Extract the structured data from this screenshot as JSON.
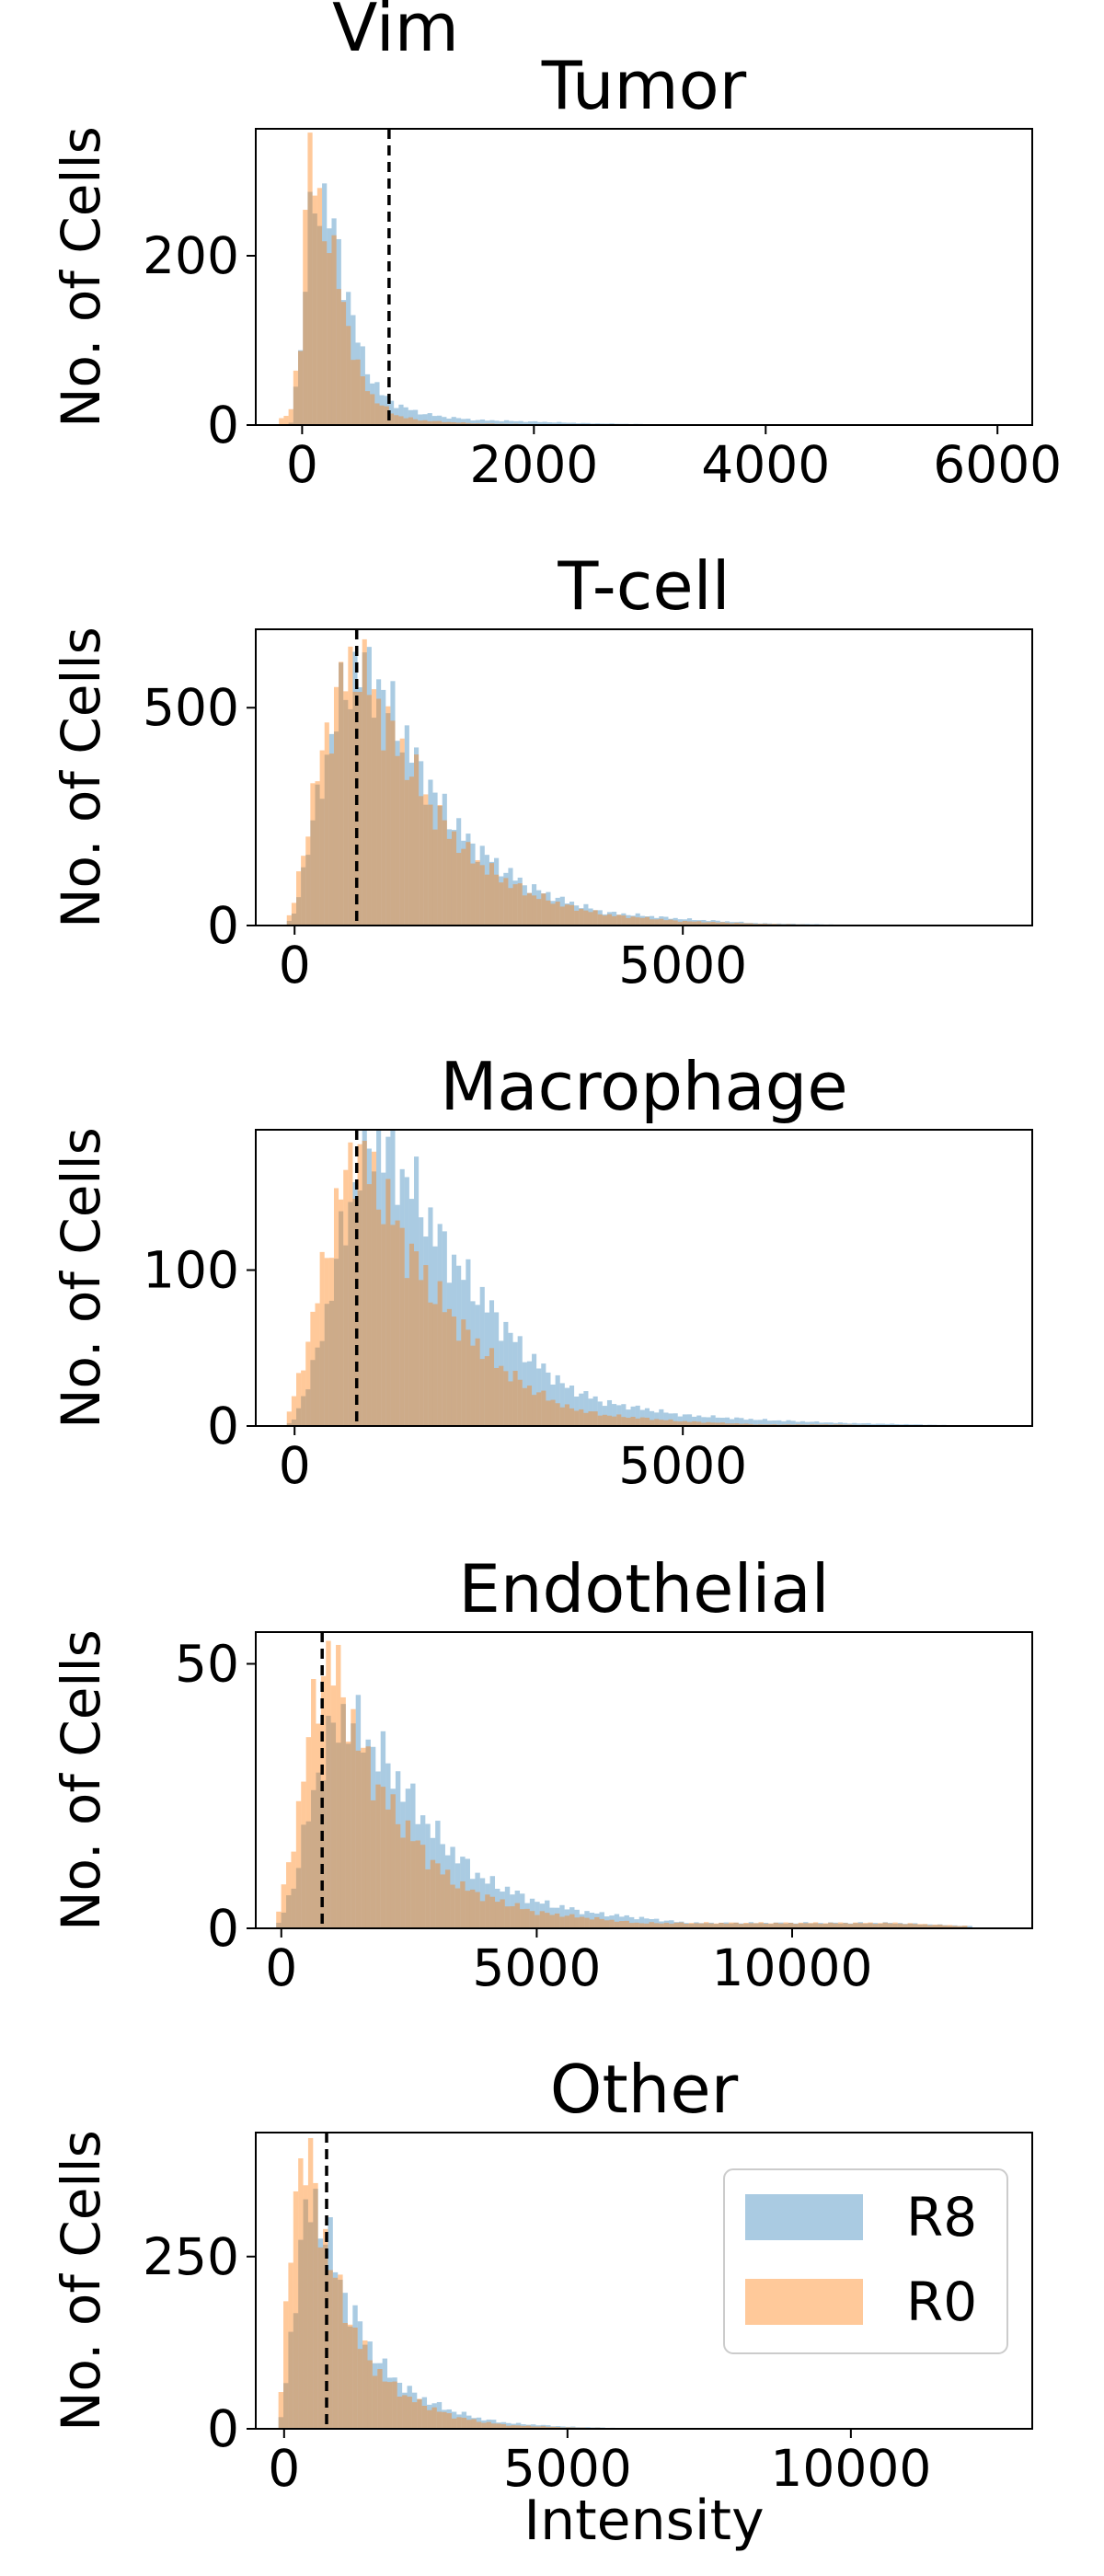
{
  "figure": {
    "suptitle": "Vim",
    "xlabel": "Intensity"
  },
  "colors": {
    "R8": "#1f77b4",
    "R0": "#ff7f0e",
    "threshold": "#000000"
  },
  "legend": {
    "placement": "lower-right-of-last-panel",
    "entries": [
      "R8",
      "R0"
    ]
  },
  "chart_data": [
    {
      "type": "histogram",
      "title": "Tumor",
      "ylabel": "No. of Cells",
      "xlim": [
        -400,
        6300
      ],
      "ylim": [
        0,
        350
      ],
      "xticks": [
        0,
        2000,
        4000,
        6000
      ],
      "yticks": [
        0,
        200
      ],
      "threshold": 750,
      "series": [
        {
          "name": "R8",
          "x": [
            -200,
            -100,
            0,
            50,
            100,
            150,
            200,
            250,
            300,
            350,
            400,
            450,
            500,
            600,
            700,
            800,
            1000,
            1200,
            1500,
            2000,
            2500,
            3000,
            6000
          ],
          "values": [
            0,
            0,
            100,
            220,
            270,
            265,
            260,
            240,
            215,
            185,
            150,
            120,
            90,
            55,
            35,
            25,
            15,
            10,
            6,
            4,
            2,
            1,
            0
          ]
        },
        {
          "name": "R0",
          "x": [
            -200,
            -100,
            0,
            50,
            100,
            150,
            200,
            250,
            300,
            350,
            400,
            450,
            500,
            600,
            700,
            800,
            1000,
            1200,
            1500,
            2000,
            2500,
            3000,
            6000
          ],
          "values": [
            5,
            15,
            120,
            330,
            300,
            260,
            240,
            205,
            180,
            150,
            115,
            85,
            60,
            35,
            22,
            12,
            6,
            4,
            2,
            1,
            1,
            0,
            0
          ]
        }
      ]
    },
    {
      "type": "histogram",
      "title": "T-cell",
      "ylabel": "No. of Cells",
      "xlim": [
        -500,
        9500
      ],
      "ylim": [
        0,
        680
      ],
      "xticks": [
        0,
        5000
      ],
      "yticks": [
        0,
        500
      ],
      "threshold": 800,
      "series": [
        {
          "name": "R8",
          "x": [
            -100,
            0,
            200,
            400,
            600,
            800,
            1000,
            1200,
            1500,
            1800,
            2200,
            2600,
            3000,
            3500,
            4000,
            5000,
            6000,
            7000,
            9000
          ],
          "values": [
            0,
            30,
            200,
            380,
            520,
            590,
            580,
            510,
            400,
            300,
            200,
            140,
            90,
            55,
            30,
            15,
            5,
            2,
            0
          ]
        },
        {
          "name": "R0",
          "x": [
            -100,
            0,
            200,
            400,
            600,
            800,
            1000,
            1200,
            1500,
            1800,
            2200,
            2600,
            3000,
            3500,
            4000,
            5000,
            6000,
            7000,
            9000
          ],
          "values": [
            5,
            60,
            260,
            430,
            560,
            600,
            540,
            460,
            360,
            260,
            170,
            115,
            75,
            45,
            25,
            10,
            4,
            1,
            0
          ]
        }
      ]
    },
    {
      "type": "histogram",
      "title": "Macrophage",
      "ylabel": "No. of Cells",
      "xlim": [
        -500,
        9500
      ],
      "ylim": [
        0,
        190
      ],
      "xticks": [
        0,
        5000
      ],
      "yticks": [
        0,
        100
      ],
      "threshold": 800,
      "series": [
        {
          "name": "R8",
          "x": [
            -100,
            0,
            200,
            400,
            600,
            800,
            1000,
            1200,
            1500,
            1800,
            2200,
            2600,
            3000,
            3500,
            4000,
            5000,
            6000,
            7000,
            8000,
            9000
          ],
          "values": [
            0,
            5,
            30,
            70,
            120,
            160,
            185,
            175,
            155,
            125,
            95,
            70,
            45,
            25,
            15,
            7,
            4,
            2,
            1,
            0
          ]
        },
        {
          "name": "R0",
          "x": [
            -100,
            0,
            200,
            400,
            600,
            800,
            1000,
            1200,
            1500,
            1800,
            2200,
            2600,
            3000,
            3500,
            4000,
            5000,
            6000,
            7000,
            8000,
            9000
          ],
          "values": [
            5,
            20,
            60,
            110,
            150,
            180,
            160,
            140,
            110,
            85,
            60,
            40,
            25,
            12,
            7,
            3,
            1,
            1,
            0,
            0
          ]
        }
      ]
    },
    {
      "type": "histogram",
      "title": "Endothelial",
      "ylabel": "No. of Cells",
      "xlim": [
        -500,
        14700
      ],
      "ylim": [
        0,
        56
      ],
      "xticks": [
        0,
        5000,
        10000
      ],
      "yticks": [
        0,
        50
      ],
      "threshold": 800,
      "series": [
        {
          "name": "R8",
          "x": [
            -100,
            0,
            300,
            600,
            900,
            1200,
            1500,
            2000,
            2500,
            3000,
            3500,
            4000,
            5000,
            6000,
            7000,
            8000,
            10000,
            12000,
            14500
          ],
          "values": [
            0,
            2,
            10,
            25,
            35,
            40,
            38,
            32,
            25,
            18,
            13,
            9,
            5,
            3,
            2,
            1,
            1,
            1,
            0
          ]
        },
        {
          "name": "R0",
          "x": [
            -100,
            0,
            300,
            600,
            900,
            1200,
            1500,
            2000,
            2500,
            3000,
            3500,
            4000,
            5000,
            6000,
            7000,
            8000,
            10000,
            12000,
            14500
          ],
          "values": [
            2,
            5,
            20,
            40,
            52,
            45,
            35,
            25,
            18,
            12,
            8,
            6,
            3,
            2,
            1,
            1,
            1,
            1,
            0
          ]
        }
      ]
    },
    {
      "type": "histogram",
      "title": "Other",
      "ylabel": "No. of Cells",
      "xlim": [
        -500,
        13200
      ],
      "ylim": [
        0,
        430
      ],
      "xticks": [
        0,
        5000,
        10000
      ],
      "yticks": [
        0,
        250
      ],
      "threshold": 750,
      "series": [
        {
          "name": "R8",
          "x": [
            -100,
            0,
            200,
            400,
            600,
            800,
            1000,
            1200,
            1500,
            1800,
            2200,
            2600,
            3000,
            3500,
            4000,
            5000,
            6000,
            7000,
            10000,
            13000
          ],
          "values": [
            0,
            40,
            200,
            320,
            320,
            270,
            210,
            170,
            120,
            85,
            55,
            38,
            25,
            14,
            8,
            3,
            1,
            1,
            0,
            0
          ]
        },
        {
          "name": "R0",
          "x": [
            -100,
            0,
            200,
            400,
            600,
            800,
            1000,
            1200,
            1500,
            1800,
            2200,
            2600,
            3000,
            3500,
            4000,
            5000,
            6000,
            7000,
            10000,
            13000
          ],
          "values": [
            5,
            120,
            360,
            400,
            320,
            250,
            190,
            150,
            100,
            70,
            45,
            30,
            18,
            10,
            5,
            2,
            1,
            0,
            0,
            0
          ]
        }
      ]
    }
  ]
}
